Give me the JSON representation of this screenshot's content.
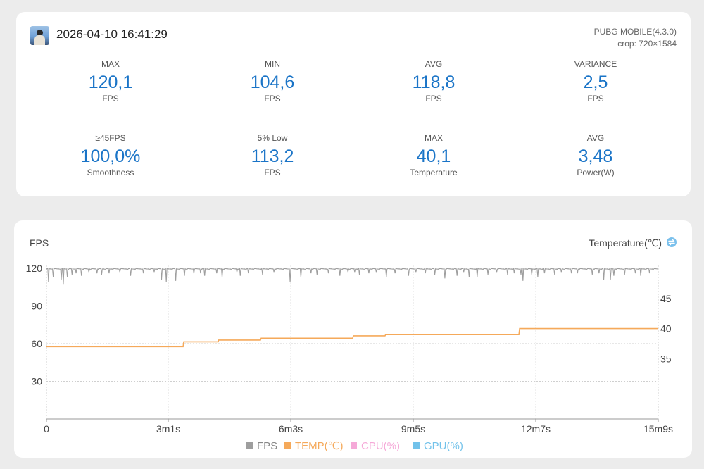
{
  "header": {
    "timestamp": "2026-04-10 16:41:29",
    "app_name": "PUBG MOBILE(4.3.0)",
    "crop": "crop: 720×1584"
  },
  "stats": [
    {
      "label": "MAX",
      "value": "120,1",
      "unit": "FPS"
    },
    {
      "label": "MIN",
      "value": "104,6",
      "unit": "FPS"
    },
    {
      "label": "AVG",
      "value": "118,8",
      "unit": "FPS"
    },
    {
      "label": "VARIANCE",
      "value": "2,5",
      "unit": "FPS"
    },
    {
      "label": "≥45FPS",
      "value": "100,0%",
      "unit": "Smoothness"
    },
    {
      "label": "5% Low",
      "value": "113,2",
      "unit": "FPS"
    },
    {
      "label": "MAX",
      "value": "40,1",
      "unit": "Temperature"
    },
    {
      "label": "AVG",
      "value": "3,48",
      "unit": "Power(W)"
    }
  ],
  "chart_data": {
    "type": "line",
    "ylabel": "FPS",
    "ylabel_right": "Temperature(℃)",
    "ylim": [
      0,
      120
    ],
    "yticks": [
      30,
      60,
      90,
      120
    ],
    "ylim_right": [
      25,
      50
    ],
    "yticks_right": [
      35,
      40,
      45
    ],
    "x_ticks": [
      "0",
      "3m1s",
      "6m3s",
      "9m5s",
      "12m7s",
      "15m9s"
    ],
    "x_tick_seconds": [
      0,
      181,
      363,
      545,
      727,
      909
    ],
    "x_max_seconds": 909,
    "grid": true,
    "legend_position": "bottom",
    "series": [
      {
        "name": "FPS",
        "color": "#9e9e9e",
        "baseline": 119.5,
        "dips": [
          [
            3,
            109
          ],
          [
            10,
            113
          ],
          [
            22,
            111
          ],
          [
            25,
            107
          ],
          [
            31,
            113
          ],
          [
            38,
            115
          ],
          [
            44,
            116
          ],
          [
            52,
            114
          ],
          [
            63,
            117
          ],
          [
            75,
            116
          ],
          [
            82,
            115
          ],
          [
            93,
            116
          ],
          [
            109,
            117
          ],
          [
            125,
            114
          ],
          [
            144,
            116
          ],
          [
            160,
            117
          ],
          [
            171,
            111
          ],
          [
            178,
            109
          ],
          [
            192,
            110
          ],
          [
            205,
            114
          ],
          [
            219,
            116
          ],
          [
            229,
            116
          ],
          [
            235,
            114
          ],
          [
            253,
            116
          ],
          [
            261,
            113
          ],
          [
            283,
            117
          ],
          [
            288,
            114
          ],
          [
            300,
            116
          ],
          [
            321,
            115
          ],
          [
            338,
            117
          ],
          [
            362,
            109
          ],
          [
            378,
            113
          ],
          [
            393,
            116
          ],
          [
            402,
            115
          ],
          [
            419,
            116
          ],
          [
            436,
            114
          ],
          [
            448,
            117
          ],
          [
            458,
            117
          ],
          [
            465,
            115
          ],
          [
            479,
            116
          ],
          [
            490,
            117
          ],
          [
            505,
            113
          ],
          [
            518,
            116
          ],
          [
            538,
            114
          ],
          [
            549,
            117
          ],
          [
            563,
            116
          ],
          [
            577,
            115
          ],
          [
            592,
            112
          ],
          [
            610,
            114
          ],
          [
            620,
            117
          ],
          [
            628,
            113
          ],
          [
            640,
            113
          ],
          [
            656,
            115
          ],
          [
            669,
            117
          ],
          [
            685,
            115
          ],
          [
            695,
            116
          ],
          [
            705,
            115
          ],
          [
            708,
            110
          ],
          [
            721,
            115
          ],
          [
            730,
            113
          ],
          [
            740,
            116
          ],
          [
            755,
            115
          ],
          [
            765,
            117
          ],
          [
            780,
            116
          ],
          [
            789,
            116
          ],
          [
            811,
            115
          ],
          [
            821,
            116
          ],
          [
            828,
            111
          ],
          [
            838,
            111
          ],
          [
            843,
            114
          ],
          [
            859,
            115
          ],
          [
            875,
            116
          ],
          [
            883,
            114
          ],
          [
            896,
            116
          ]
        ]
      },
      {
        "name": "TEMP(℃)",
        "color": "#f5a95a",
        "points": [
          [
            0,
            37.0
          ],
          [
            203,
            37.0
          ],
          [
            204,
            37.8
          ],
          [
            255,
            37.8
          ],
          [
            256,
            38.1
          ],
          [
            318,
            38.1
          ],
          [
            319,
            38.4
          ],
          [
            455,
            38.4
          ],
          [
            456,
            38.8
          ],
          [
            503,
            38.8
          ],
          [
            504,
            39.0
          ],
          [
            702,
            39.0
          ],
          [
            703,
            40.0
          ],
          [
            909,
            40.0
          ]
        ]
      },
      {
        "name": "CPU(%)",
        "color": "#f5a9d8",
        "points": []
      },
      {
        "name": "GPU(%)",
        "color": "#72c2ea",
        "points": []
      }
    ]
  }
}
